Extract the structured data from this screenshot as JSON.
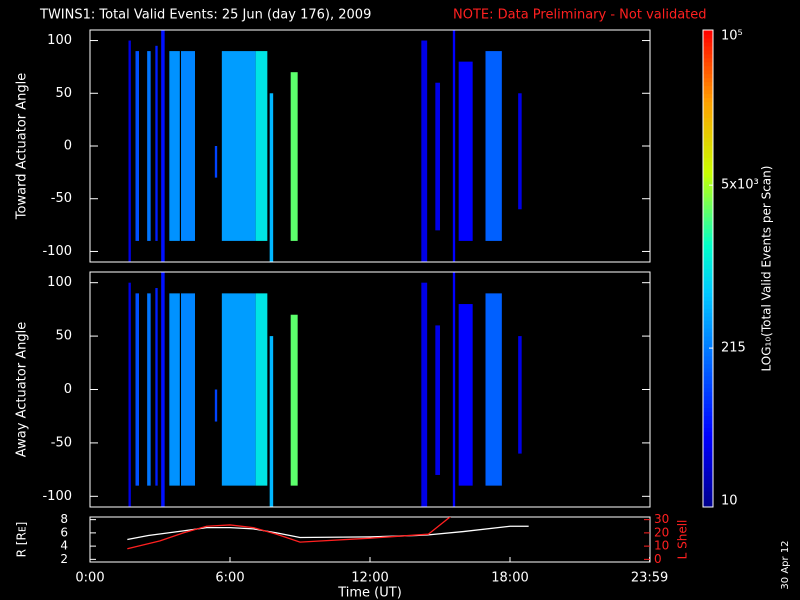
{
  "title": "TWINS1: Total Valid Events: 25 Jun (day 176), 2009",
  "note": "NOTE: Data Preliminary - Not validated",
  "footer": "30 Apr 12",
  "chart_data": [
    {
      "type": "heatmap",
      "ylabel": "Toward Actuator Angle",
      "xlim": [
        0,
        24
      ],
      "ylim": [
        -110,
        110
      ],
      "yticks": [
        -100,
        -50,
        0,
        50,
        100
      ],
      "log": true,
      "stripes": [
        {
          "x0": 1.65,
          "x1": 1.75,
          "y0": -110,
          "y1": 100,
          "value": 30
        },
        {
          "x0": 1.95,
          "x1": 2.1,
          "y0": -90,
          "y1": 90,
          "value": 120
        },
        {
          "x0": 2.45,
          "x1": 2.6,
          "y0": -90,
          "y1": 90,
          "value": 200
        },
        {
          "x0": 2.8,
          "x1": 2.9,
          "y0": -90,
          "y1": 95,
          "value": 60
        },
        {
          "x0": 3.05,
          "x1": 3.2,
          "y0": -110,
          "y1": 110,
          "value": 50
        },
        {
          "x0": 3.4,
          "x1": 3.85,
          "y0": -90,
          "y1": 90,
          "value": 300
        },
        {
          "x0": 3.9,
          "x1": 4.5,
          "y0": -90,
          "y1": 90,
          "value": 250
        },
        {
          "x0": 5.35,
          "x1": 5.45,
          "y0": -30,
          "y1": 0,
          "value": 100
        },
        {
          "x0": 5.65,
          "x1": 7.1,
          "y0": -90,
          "y1": 90,
          "value": 350
        },
        {
          "x0": 7.1,
          "x1": 7.6,
          "y0": -90,
          "y1": 90,
          "value": 1000
        },
        {
          "x0": 7.7,
          "x1": 7.85,
          "y0": -110,
          "y1": 50,
          "value": 500
        },
        {
          "x0": 8.6,
          "x1": 8.9,
          "y0": -90,
          "y1": 70,
          "value": 3000
        },
        {
          "x0": 14.2,
          "x1": 14.45,
          "y0": -110,
          "y1": 100,
          "value": 30
        },
        {
          "x0": 14.8,
          "x1": 15.0,
          "y0": -80,
          "y1": 60,
          "value": 30
        },
        {
          "x0": 15.55,
          "x1": 15.65,
          "y0": -110,
          "y1": 110,
          "value": 40
        },
        {
          "x0": 15.8,
          "x1": 16.4,
          "y0": -90,
          "y1": 80,
          "value": 40
        },
        {
          "x0": 16.95,
          "x1": 17.65,
          "y0": -90,
          "y1": 90,
          "value": 150
        },
        {
          "x0": 18.35,
          "x1": 18.5,
          "y0": -60,
          "y1": 50,
          "value": 30
        }
      ]
    },
    {
      "type": "heatmap",
      "ylabel": "Away Actuator Angle",
      "xlim": [
        0,
        24
      ],
      "ylim": [
        -110,
        110
      ],
      "yticks": [
        -100,
        -50,
        0,
        50,
        100
      ],
      "log": true,
      "stripes": [
        {
          "x0": 1.65,
          "x1": 1.75,
          "y0": -110,
          "y1": 100,
          "value": 30
        },
        {
          "x0": 1.95,
          "x1": 2.1,
          "y0": -90,
          "y1": 90,
          "value": 120
        },
        {
          "x0": 2.45,
          "x1": 2.6,
          "y0": -90,
          "y1": 90,
          "value": 200
        },
        {
          "x0": 2.8,
          "x1": 2.9,
          "y0": -90,
          "y1": 95,
          "value": 60
        },
        {
          "x0": 3.05,
          "x1": 3.2,
          "y0": -110,
          "y1": 110,
          "value": 50
        },
        {
          "x0": 3.4,
          "x1": 3.85,
          "y0": -90,
          "y1": 90,
          "value": 300
        },
        {
          "x0": 3.9,
          "x1": 4.5,
          "y0": -90,
          "y1": 90,
          "value": 250
        },
        {
          "x0": 5.35,
          "x1": 5.45,
          "y0": -30,
          "y1": 0,
          "value": 100
        },
        {
          "x0": 5.65,
          "x1": 7.1,
          "y0": -90,
          "y1": 90,
          "value": 350
        },
        {
          "x0": 7.1,
          "x1": 7.6,
          "y0": -90,
          "y1": 90,
          "value": 1000
        },
        {
          "x0": 7.7,
          "x1": 7.85,
          "y0": -110,
          "y1": 50,
          "value": 500
        },
        {
          "x0": 8.6,
          "x1": 8.9,
          "y0": -90,
          "y1": 70,
          "value": 3000
        },
        {
          "x0": 14.2,
          "x1": 14.45,
          "y0": -110,
          "y1": 100,
          "value": 30
        },
        {
          "x0": 14.8,
          "x1": 15.0,
          "y0": -80,
          "y1": 60,
          "value": 30
        },
        {
          "x0": 15.55,
          "x1": 15.65,
          "y0": -110,
          "y1": 110,
          "value": 40
        },
        {
          "x0": 15.8,
          "x1": 16.4,
          "y0": -90,
          "y1": 80,
          "value": 40
        },
        {
          "x0": 16.95,
          "x1": 17.65,
          "y0": -90,
          "y1": 90,
          "value": 150
        },
        {
          "x0": 18.35,
          "x1": 18.5,
          "y0": -60,
          "y1": 50,
          "value": 30
        }
      ]
    },
    {
      "type": "line",
      "xlabel": "Time (UT)",
      "ylabel": "R [Rᴇ]",
      "y2label": "L Shell",
      "xlim": [
        0,
        24
      ],
      "xticks": [
        {
          "value": 0,
          "label": "0:00"
        },
        {
          "value": 6,
          "label": "6:00"
        },
        {
          "value": 12,
          "label": "12:00"
        },
        {
          "value": 18,
          "label": "18:00"
        },
        {
          "value": 23.983,
          "label": "23:59"
        }
      ],
      "ylim": [
        1.6,
        8.4
      ],
      "yticks": [
        2,
        4,
        6,
        8
      ],
      "y2lim": [
        -2,
        32
      ],
      "y2ticks": [
        0,
        10,
        20,
        30
      ],
      "series": [
        {
          "name": "R",
          "color": "#ffffff",
          "x": [
            1.6,
            2.5,
            4,
            5,
            6,
            7,
            8,
            9,
            12,
            14,
            14.5,
            16,
            18,
            18.8
          ],
          "values": [
            5,
            5.6,
            6.3,
            6.8,
            6.8,
            6.6,
            6.0,
            5.3,
            5.4,
            5.6,
            5.7,
            6.2,
            7.0,
            7.0
          ]
        },
        {
          "name": "L Shell",
          "color": "#ff2020",
          "axis": "y2",
          "x": [
            1.6,
            3,
            4,
            5,
            6,
            7,
            8,
            9,
            12,
            14.5,
            15.5
          ],
          "values": [
            8,
            14,
            20,
            25,
            26,
            24,
            19,
            13,
            16,
            19,
            33
          ]
        }
      ]
    },
    {
      "type": "colorbar",
      "label": "LOG₁₀(Total Valid Events per Scan)",
      "lim": [
        10,
        100000
      ],
      "log": true,
      "ticks": [
        10,
        215,
        {
          "value": 5000,
          "label": "5x10³"
        },
        {
          "value": 100000,
          "label": "10⁵"
        }
      ]
    }
  ]
}
